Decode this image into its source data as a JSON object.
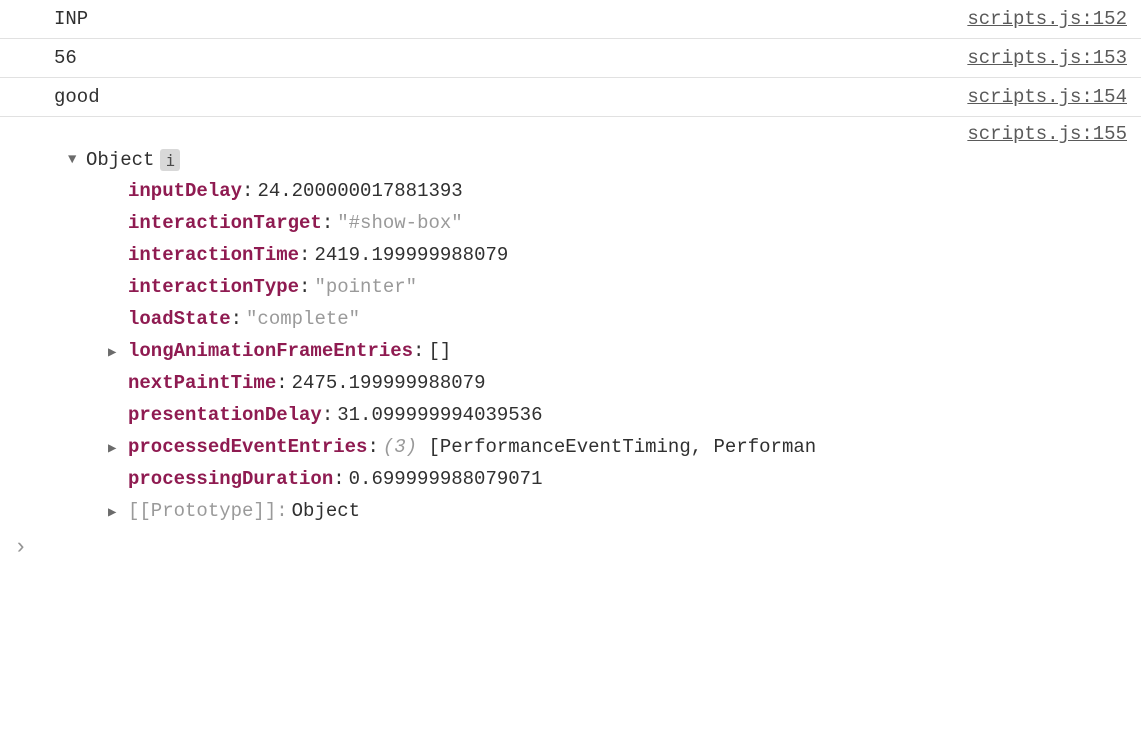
{
  "colors": {
    "key": "#8f1b51",
    "muted": "#9a9a9a",
    "text": "#303030",
    "border": "#e1e1e1",
    "badge_bg": "#d8d8d8"
  },
  "rows": [
    {
      "message": "INP",
      "source": "scripts.js:152"
    },
    {
      "message": "56",
      "source": "scripts.js:153"
    },
    {
      "message": "good",
      "source": "scripts.js:154"
    }
  ],
  "object_row": {
    "source": "scripts.js:155",
    "header_label": "Object",
    "info_glyph": "i"
  },
  "props": {
    "inputDelay": {
      "key": "inputDelay",
      "value": "24.200000017881393",
      "type": "number",
      "expandable": false
    },
    "interactionTarget": {
      "key": "interactionTarget",
      "value": "\"#show-box\"",
      "type": "string",
      "expandable": false
    },
    "interactionTime": {
      "key": "interactionTime",
      "value": "2419.199999988079",
      "type": "number",
      "expandable": false
    },
    "interactionType": {
      "key": "interactionType",
      "value": "\"pointer\"",
      "type": "string",
      "expandable": false
    },
    "loadState": {
      "key": "loadState",
      "value": "\"complete\"",
      "type": "string",
      "expandable": false
    },
    "longAnimationFrameEntries": {
      "key": "longAnimationFrameEntries",
      "value": "[]",
      "type": "array",
      "expandable": true
    },
    "nextPaintTime": {
      "key": "nextPaintTime",
      "value": "2475.199999988079",
      "type": "number",
      "expandable": false
    },
    "presentationDelay": {
      "key": "presentationDelay",
      "value": "31.099999994039536",
      "type": "number",
      "expandable": false
    },
    "processedEventEntries": {
      "key": "processedEventEntries",
      "count": "(3)",
      "value": "[PerformanceEventTiming, Performan",
      "type": "array",
      "expandable": true
    },
    "processingDuration": {
      "key": "processingDuration",
      "value": "0.699999988079071",
      "type": "number",
      "expandable": false
    }
  },
  "prototype": {
    "key": "[[Prototype]]",
    "value": "Object"
  },
  "prompt_glyph": "›"
}
